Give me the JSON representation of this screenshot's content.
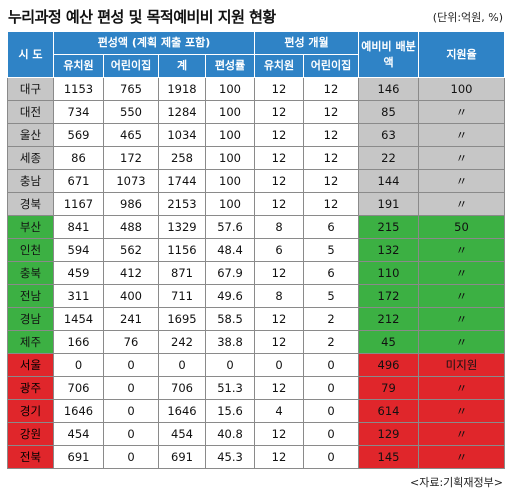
{
  "title": "누리과정 예산 편성 및 목적예비비 지원 현황",
  "unit": "(단위:억원, %)",
  "source": "<자료:기획재정부>",
  "headers": {
    "region": "시 도",
    "budget_group": "편성액 (계획 제출 포함)",
    "budget_months_group": "편성 개월",
    "reserve": "예비비 배분액",
    "support_rate": "지원율",
    "kindergarten": "유치원",
    "daycare": "어린이집",
    "total": "계",
    "rate": "편성률",
    "kindergarten2": "유치원",
    "daycare2": "어린이집"
  },
  "rows": [
    {
      "region": "대구",
      "group": "gray",
      "k": "1153",
      "d": "765",
      "t": "1918",
      "rate": "100",
      "km": "12",
      "dm": "12",
      "reserve": "146",
      "support": "100"
    },
    {
      "region": "대전",
      "group": "gray",
      "k": "734",
      "d": "550",
      "t": "1284",
      "rate": "100",
      "km": "12",
      "dm": "12",
      "reserve": "85",
      "support": "〃"
    },
    {
      "region": "울산",
      "group": "gray",
      "k": "569",
      "d": "465",
      "t": "1034",
      "rate": "100",
      "km": "12",
      "dm": "12",
      "reserve": "63",
      "support": "〃"
    },
    {
      "region": "세종",
      "group": "gray",
      "k": "86",
      "d": "172",
      "t": "258",
      "rate": "100",
      "km": "12",
      "dm": "12",
      "reserve": "22",
      "support": "〃"
    },
    {
      "region": "충남",
      "group": "gray",
      "k": "671",
      "d": "1073",
      "t": "1744",
      "rate": "100",
      "km": "12",
      "dm": "12",
      "reserve": "144",
      "support": "〃"
    },
    {
      "region": "경북",
      "group": "gray",
      "k": "1167",
      "d": "986",
      "t": "2153",
      "rate": "100",
      "km": "12",
      "dm": "12",
      "reserve": "191",
      "support": "〃"
    },
    {
      "region": "부산",
      "group": "green",
      "k": "841",
      "d": "488",
      "t": "1329",
      "rate": "57.6",
      "km": "8",
      "dm": "6",
      "reserve": "215",
      "support": "50"
    },
    {
      "region": "인천",
      "group": "green",
      "k": "594",
      "d": "562",
      "t": "1156",
      "rate": "48.4",
      "km": "6",
      "dm": "5",
      "reserve": "132",
      "support": "〃"
    },
    {
      "region": "충북",
      "group": "green",
      "k": "459",
      "d": "412",
      "t": "871",
      "rate": "67.9",
      "km": "12",
      "dm": "6",
      "reserve": "110",
      "support": "〃"
    },
    {
      "region": "전남",
      "group": "green",
      "k": "311",
      "d": "400",
      "t": "711",
      "rate": "49.6",
      "km": "8",
      "dm": "5",
      "reserve": "172",
      "support": "〃"
    },
    {
      "region": "경남",
      "group": "green",
      "k": "1454",
      "d": "241",
      "t": "1695",
      "rate": "58.5",
      "km": "12",
      "dm": "2",
      "reserve": "212",
      "support": "〃"
    },
    {
      "region": "제주",
      "group": "green",
      "k": "166",
      "d": "76",
      "t": "242",
      "rate": "38.8",
      "km": "12",
      "dm": "2",
      "reserve": "45",
      "support": "〃"
    },
    {
      "region": "서울",
      "group": "red",
      "k": "0",
      "d": "0",
      "t": "0",
      "rate": "0",
      "km": "0",
      "dm": "0",
      "reserve": "496",
      "support": "미지원"
    },
    {
      "region": "광주",
      "group": "red",
      "k": "706",
      "d": "0",
      "t": "706",
      "rate": "51.3",
      "km": "12",
      "dm": "0",
      "reserve": "79",
      "support": "〃"
    },
    {
      "region": "경기",
      "group": "red",
      "k": "1646",
      "d": "0",
      "t": "1646",
      "rate": "15.6",
      "km": "4",
      "dm": "0",
      "reserve": "614",
      "support": "〃"
    },
    {
      "region": "강원",
      "group": "red",
      "k": "454",
      "d": "0",
      "t": "454",
      "rate": "40.8",
      "km": "12",
      "dm": "0",
      "reserve": "129",
      "support": "〃"
    },
    {
      "region": "전북",
      "group": "red",
      "k": "691",
      "d": "0",
      "t": "691",
      "rate": "45.3",
      "km": "12",
      "dm": "0",
      "reserve": "145",
      "support": "〃"
    }
  ]
}
